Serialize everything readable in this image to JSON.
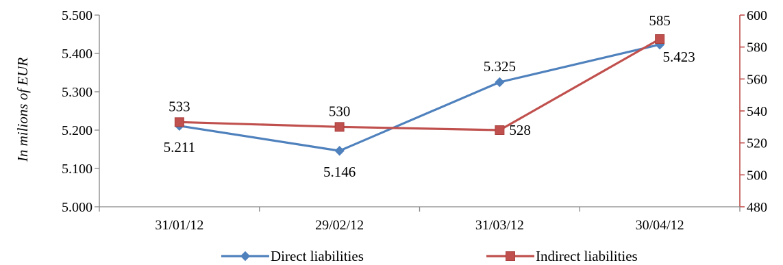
{
  "chart_data": {
    "type": "line",
    "title": "",
    "ylabel": "In milions of EUR",
    "categories": [
      "31/01/12",
      "29/02/12",
      "31/03/12",
      "30/04/12"
    ],
    "left_axis": {
      "ylim": [
        5.0,
        5.5
      ],
      "ticks": [
        {
          "value": 5.0,
          "label": "5.000"
        },
        {
          "value": 5.1,
          "label": "5.100"
        },
        {
          "value": 5.2,
          "label": "5.200"
        },
        {
          "value": 5.3,
          "label": "5.300"
        },
        {
          "value": 5.4,
          "label": "5.400"
        },
        {
          "value": 5.5,
          "label": "5.500"
        }
      ],
      "color": "#4F81BD"
    },
    "right_axis": {
      "ylim": [
        480,
        600
      ],
      "ticks": [
        {
          "value": 480,
          "label": "480"
        },
        {
          "value": 500,
          "label": "500"
        },
        {
          "value": 520,
          "label": "520"
        },
        {
          "value": 540,
          "label": "540"
        },
        {
          "value": 560,
          "label": "560"
        },
        {
          "value": 580,
          "label": "580"
        },
        {
          "value": 600,
          "label": "600"
        }
      ],
      "color": "#C0504D"
    },
    "series": [
      {
        "name": "Direct liabilities",
        "axis": "left",
        "color": "#4F81BD",
        "marker": "diamond",
        "values": [
          5.211,
          5.146,
          5.325,
          5.423
        ],
        "labels": [
          "5.211",
          "5.146",
          "5.325",
          "5.423"
        ],
        "label_pos": [
          "below",
          "below",
          "above",
          "below"
        ]
      },
      {
        "name": "Indirect liabilities",
        "axis": "right",
        "color": "#C0504D",
        "marker": "square",
        "values": [
          533,
          530,
          528,
          585
        ],
        "labels": [
          "533",
          "530",
          "528",
          "585"
        ],
        "label_pos": [
          "above",
          "above",
          "right",
          "above"
        ]
      }
    ],
    "legend": "bottom",
    "grid": false
  }
}
